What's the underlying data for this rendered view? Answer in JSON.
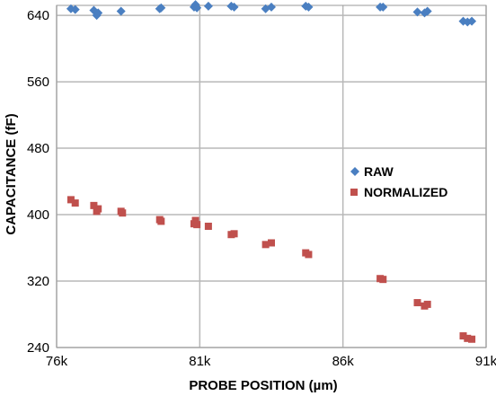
{
  "chart_data": {
    "type": "scatter",
    "xlabel": "PROBE POSITION (µm)",
    "ylabel": "CAPACITANCE (fF)",
    "xlim": [
      76000,
      91000
    ],
    "ylim": [
      240,
      652
    ],
    "x_ticks": [
      76000,
      81000,
      86000,
      91000
    ],
    "x_tick_labels": [
      "76k",
      "81k",
      "86k",
      "91k"
    ],
    "y_ticks": [
      240,
      320,
      400,
      480,
      560,
      640
    ],
    "y_tick_labels": [
      "240",
      "320",
      "400",
      "480",
      "560",
      "640"
    ],
    "grid": true,
    "legend_position": "right-center",
    "series": [
      {
        "name": "RAW",
        "color": "#4a7fc1",
        "marker": "diamond",
        "points": [
          [
            76500,
            648
          ],
          [
            76650,
            647
          ],
          [
            77300,
            646
          ],
          [
            77400,
            640
          ],
          [
            77450,
            643
          ],
          [
            78250,
            645
          ],
          [
            79600,
            648
          ],
          [
            79650,
            649
          ],
          [
            80800,
            650
          ],
          [
            80850,
            653
          ],
          [
            80900,
            649
          ],
          [
            81300,
            651
          ],
          [
            82100,
            651
          ],
          [
            82200,
            650
          ],
          [
            83300,
            648
          ],
          [
            83500,
            650
          ],
          [
            84700,
            651
          ],
          [
            84800,
            650
          ],
          [
            87300,
            650
          ],
          [
            87400,
            650
          ],
          [
            88600,
            644
          ],
          [
            88850,
            643
          ],
          [
            88950,
            645
          ],
          [
            90200,
            633
          ],
          [
            90350,
            632
          ],
          [
            90500,
            633
          ]
        ]
      },
      {
        "name": "NORMALIZED",
        "color": "#c0504d",
        "marker": "square",
        "points": [
          [
            76500,
            418
          ],
          [
            76650,
            414
          ],
          [
            77300,
            411
          ],
          [
            77400,
            404
          ],
          [
            77450,
            407
          ],
          [
            78250,
            404
          ],
          [
            78300,
            402
          ],
          [
            79600,
            394
          ],
          [
            79650,
            392
          ],
          [
            80800,
            389
          ],
          [
            80850,
            393
          ],
          [
            80900,
            388
          ],
          [
            81300,
            386
          ],
          [
            82100,
            376
          ],
          [
            82200,
            377
          ],
          [
            83300,
            364
          ],
          [
            83500,
            366
          ],
          [
            84700,
            354
          ],
          [
            84800,
            352
          ],
          [
            87300,
            323
          ],
          [
            87400,
            322
          ],
          [
            88600,
            294
          ],
          [
            88850,
            290
          ],
          [
            88950,
            292
          ],
          [
            90200,
            254
          ],
          [
            90350,
            251
          ],
          [
            90500,
            250
          ]
        ]
      }
    ]
  }
}
